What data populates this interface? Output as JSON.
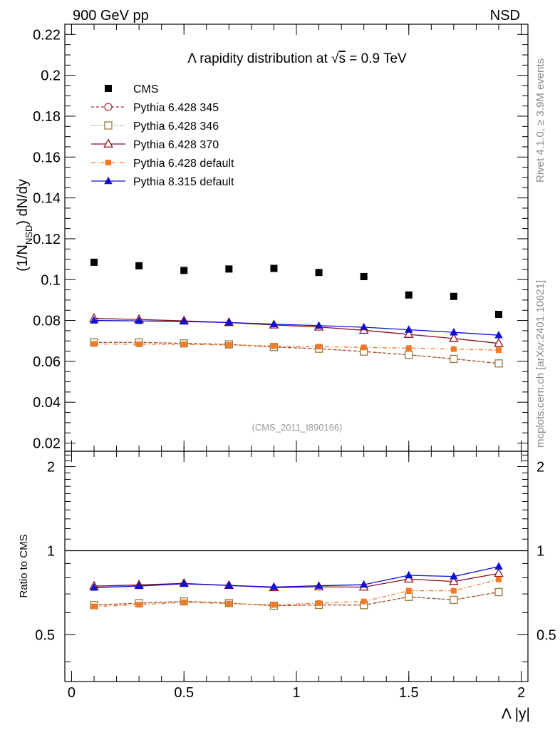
{
  "header": {
    "left": "900 GeV pp",
    "right": "NSD"
  },
  "side_text": {
    "rivet": "Rivet 4.1.0, ≥ 3.9M events",
    "mcplots": "mcplots.cern.ch [arXiv:2401.10621]"
  },
  "chart_data": {
    "type": "scatter",
    "title": "Λ rapidity distribution at √s = 0.9 TeV",
    "title_parts": {
      "pre": "Λ rapidity distribution at ",
      "sqrt": "√",
      "s": "s",
      "post": " = 0.9 TeV"
    },
    "watermark": "(CMS_2011_I890166)",
    "xlabel": "Λ |y|",
    "ylabel": {
      "main": "(1/N",
      "sub": "NSD",
      "tail": ") dN/dy"
    },
    "ratio_ylabel": "Ratio to CMS",
    "xlim": [
      -0.03,
      2.03
    ],
    "ylim": [
      0.016,
      0.225
    ],
    "ratio_ylim": [
      0.34,
      2.27
    ],
    "ratio_scale": "log",
    "x_ticks": [
      0,
      0.5,
      1,
      1.5,
      2
    ],
    "x_tick_labels": [
      "0",
      "0.5",
      "1",
      "1.5",
      "2"
    ],
    "y_ticks": [
      0.02,
      0.04,
      0.06,
      0.08,
      0.1,
      0.12,
      0.14,
      0.16,
      0.18,
      0.2,
      0.22
    ],
    "y_tick_labels": [
      "0.02",
      "0.04",
      "0.06",
      "0.08",
      "0.1",
      "0.12",
      "0.14",
      "0.16",
      "0.18",
      "0.2",
      "0.22"
    ],
    "ratio_ticks": [
      0.5,
      1,
      2
    ],
    "ratio_tick_labels": [
      "0.5",
      "1",
      "2"
    ],
    "x": [
      0.1,
      0.3,
      0.5,
      0.7,
      0.9,
      1.1,
      1.3,
      1.5,
      1.7,
      1.9
    ],
    "data": {
      "name": "CMS",
      "values": [
        0.1085,
        0.1068,
        0.1045,
        0.1052,
        0.1055,
        0.1035,
        0.1015,
        0.0925,
        0.0918,
        0.083
      ],
      "color": "#000000"
    },
    "series": [
      {
        "name": "Pythia 6.428 345",
        "marker": "circle-open",
        "dash": "4,3",
        "color": "#b0303c",
        "values": [
          0.0693,
          0.0693,
          0.0688,
          0.0683,
          0.067,
          0.0662,
          0.0648,
          0.0632,
          0.0612,
          0.059
        ]
      },
      {
        "name": "Pythia 6.428 346",
        "marker": "square-open",
        "dash": "1.5,2.5",
        "color": "#9a7a3a",
        "values": [
          0.0693,
          0.0693,
          0.0688,
          0.0683,
          0.067,
          0.0662,
          0.0648,
          0.0632,
          0.0612,
          0.059
        ]
      },
      {
        "name": "Pythia 6.428 370",
        "marker": "triangle-open",
        "dash": "",
        "color": "#8b1020",
        "values": [
          0.081,
          0.0805,
          0.0798,
          0.079,
          0.0778,
          0.0768,
          0.0752,
          0.0732,
          0.0712,
          0.0688
        ]
      },
      {
        "name": "Pythia 6.428 default",
        "marker": "square-filled",
        "dash": "6,3,1.5,3",
        "color": "#f07a28",
        "values": [
          0.0685,
          0.0684,
          0.0683,
          0.068,
          0.0675,
          0.0672,
          0.0668,
          0.0665,
          0.066,
          0.0655
        ]
      },
      {
        "name": "Pythia 8.315 default",
        "marker": "triangle-filled",
        "dash": "",
        "color": "#1010d0",
        "values": [
          0.08,
          0.0798,
          0.0795,
          0.079,
          0.0782,
          0.0775,
          0.0767,
          0.0755,
          0.0742,
          0.0728
        ]
      }
    ]
  }
}
